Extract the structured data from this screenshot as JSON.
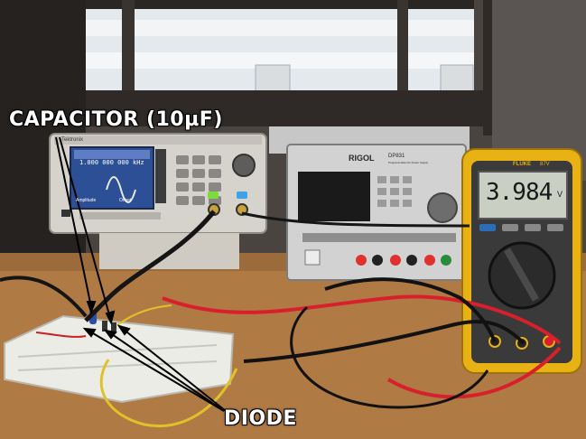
{
  "annotations": {
    "capacitor_label": "CAPACITOR (10µF)",
    "diode_label": "DIODE"
  },
  "function_generator": {
    "brand": "Tektronix",
    "frequency_display": "1.000 000 000 kHz",
    "amplitude_label": "Amplitude",
    "offset_label": "Offset"
  },
  "power_supply": {
    "brand": "RIGOL",
    "model": "DP831",
    "subtitle": "Programmable DC Power Supply"
  },
  "multimeter": {
    "brand": "FLUKE",
    "model": "87V",
    "reading": "3.984",
    "unit": "V"
  },
  "colors": {
    "desk": "#b07a45",
    "window": "#e9eef3",
    "probe_red": "#d8202c",
    "probe_black": "#1a1a1a",
    "wire_yellow": "#e0c12a",
    "meter_yellow": "#e8b214",
    "label_text": "#ffffff"
  }
}
